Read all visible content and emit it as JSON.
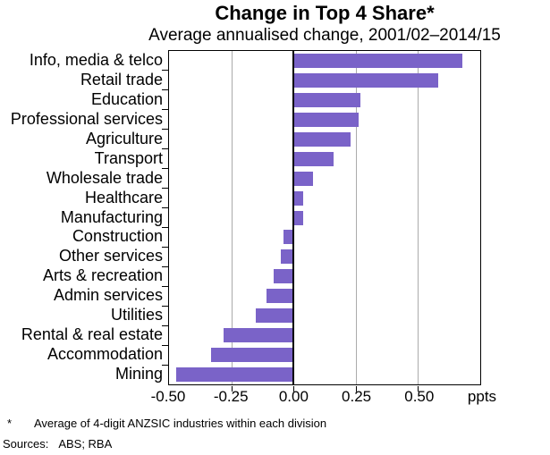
{
  "header": {
    "title": "Change in Top 4 Share*",
    "subtitle": "Average annualised change, 2001/02–2014/15"
  },
  "chart_data": {
    "type": "bar",
    "orientation": "horizontal",
    "title": "Change in Top 4 Share*",
    "subtitle": "Average annualised change, 2001/02–2014/15",
    "categories": [
      "Info, media & telco",
      "Retail trade",
      "Education",
      "Professional services",
      "Agriculture",
      "Transport",
      "Wholesale trade",
      "Healthcare",
      "Manufacturing",
      "Construction",
      "Other services",
      "Arts & recreation",
      "Admin services",
      "Utilities",
      "Rental & real estate",
      "Accommodation",
      "Mining"
    ],
    "values": [
      0.68,
      0.58,
      0.27,
      0.26,
      0.23,
      0.16,
      0.08,
      0.04,
      0.04,
      -0.04,
      -0.05,
      -0.08,
      -0.11,
      -0.15,
      -0.28,
      -0.33,
      -0.47
    ],
    "unit_label": "ppts",
    "xlim": [
      -0.5,
      0.75
    ],
    "x_ticks": [
      {
        "label": "-0.50",
        "value": -0.5
      },
      {
        "label": "-0.25",
        "value": -0.25
      },
      {
        "label": "0.00",
        "value": 0
      },
      {
        "label": "0.25",
        "value": 0.25
      },
      {
        "label": "0.50",
        "value": 0.5
      }
    ],
    "gridlines_at": [
      -0.25,
      0.25,
      0.5
    ],
    "zero_line_at": 0,
    "grid_on": true,
    "legend": "none",
    "colors": {
      "bar": "#7A63C8",
      "gridline": "#ABABAB",
      "axis": "#000000",
      "background": "#FFFFFF"
    }
  },
  "footnotes": {
    "asterisk": "*",
    "note": "Average of 4-digit ANZSIC industries within each division",
    "sources_label": "Sources:",
    "sources_value": "ABS; RBA"
  }
}
